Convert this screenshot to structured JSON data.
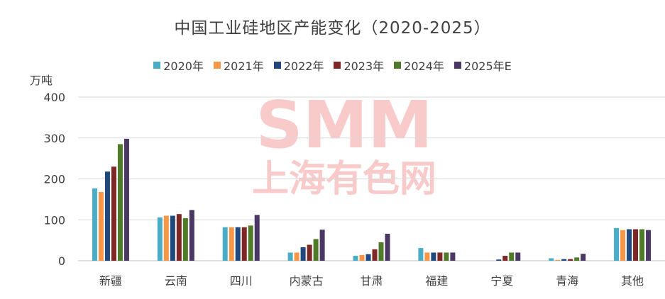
{
  "chart_data": {
    "type": "bar",
    "title": "中国工业硅地区产能变化（2020-2025）",
    "ylabel": "万吨",
    "ylim": [
      0,
      400
    ],
    "yticks": [
      0,
      100,
      200,
      300,
      400
    ],
    "grid": true,
    "legend_position": "top",
    "categories": [
      "新疆",
      "云南",
      "四川",
      "内蒙古",
      "甘肃",
      "福建",
      "宁夏",
      "青海",
      "其他"
    ],
    "series": [
      {
        "name": "2020年",
        "color": "#4bacc6",
        "values": [
          177,
          106,
          82,
          20,
          12,
          31,
          0,
          6,
          80
        ]
      },
      {
        "name": "2021年",
        "color": "#f79646",
        "values": [
          168,
          110,
          82,
          20,
          14,
          20,
          0,
          2,
          75
        ]
      },
      {
        "name": "2022年",
        "color": "#1f497d",
        "values": [
          218,
          110,
          82,
          33,
          16,
          20,
          3,
          4,
          77
        ]
      },
      {
        "name": "2023年",
        "color": "#7f2626",
        "values": [
          230,
          114,
          82,
          39,
          28,
          20,
          12,
          4,
          77
        ]
      },
      {
        "name": "2024年",
        "color": "#4f7a28",
        "values": [
          285,
          104,
          86,
          53,
          45,
          20,
          20,
          8,
          77
        ]
      },
      {
        "name": "2025年E",
        "color": "#4a3764",
        "values": [
          298,
          124,
          112,
          76,
          66,
          20,
          20,
          17,
          75
        ]
      }
    ]
  },
  "watermark": {
    "line1": "SMM",
    "line2": "上海有色网"
  }
}
